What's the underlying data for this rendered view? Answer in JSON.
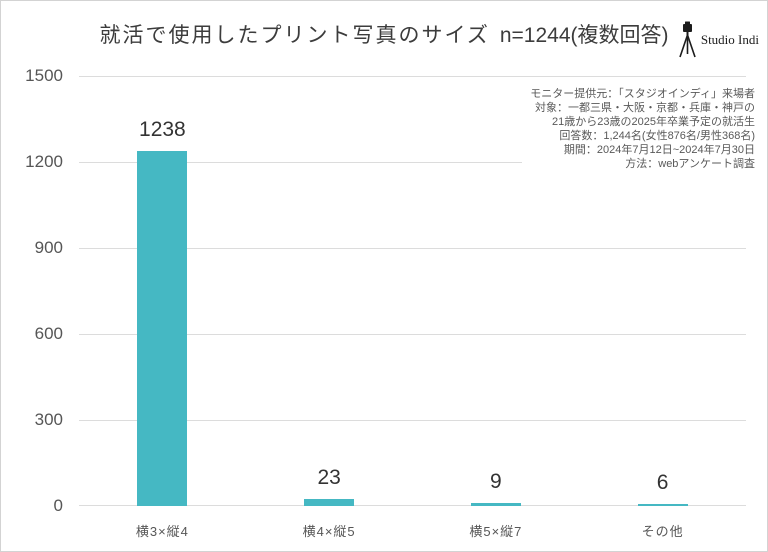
{
  "page": {
    "title_main": "就活で使用したプリント写真のサイズ",
    "title_n": "n=1244(複数回答)",
    "logo_text": "Studio Indi",
    "logo_icon": "camera-tripod-icon"
  },
  "annotation": {
    "lines": [
      "モニター提供元：「スタジオインディ」来場者",
      "対象：一都三県・大阪・京都・兵庫・神戸の",
      "21歳から23歳の2025年卒業予定の就活生",
      "回答数：1,244名(女性876名/男性368名)",
      "期間：2024年7月12日~2024年7月30日",
      "方法：webアンケート調査"
    ]
  },
  "chart_data": {
    "type": "bar",
    "title": "就活で使用したプリント写真のサイズ n=1244(複数回答)",
    "categories": [
      "横3×縦4",
      "横4×縦5",
      "横5×縦7",
      "その他"
    ],
    "values": [
      1238,
      23,
      9,
      6
    ],
    "xlabel": "",
    "ylabel": "",
    "ylim": [
      0,
      1500
    ],
    "yticks": [
      0,
      300,
      600,
      900,
      1200,
      1500
    ],
    "grid": true,
    "legend": "none",
    "bar_color": "#45b8c3"
  },
  "colors": {
    "bar": "#45b8c3",
    "title_text": "#3c3c3c",
    "value_text": "#333333",
    "axis_text": "#565656",
    "grid_line": "#dcdcdc",
    "annotation_text": "#595959",
    "border": "#d3d3d3",
    "background": "#ffffff"
  }
}
